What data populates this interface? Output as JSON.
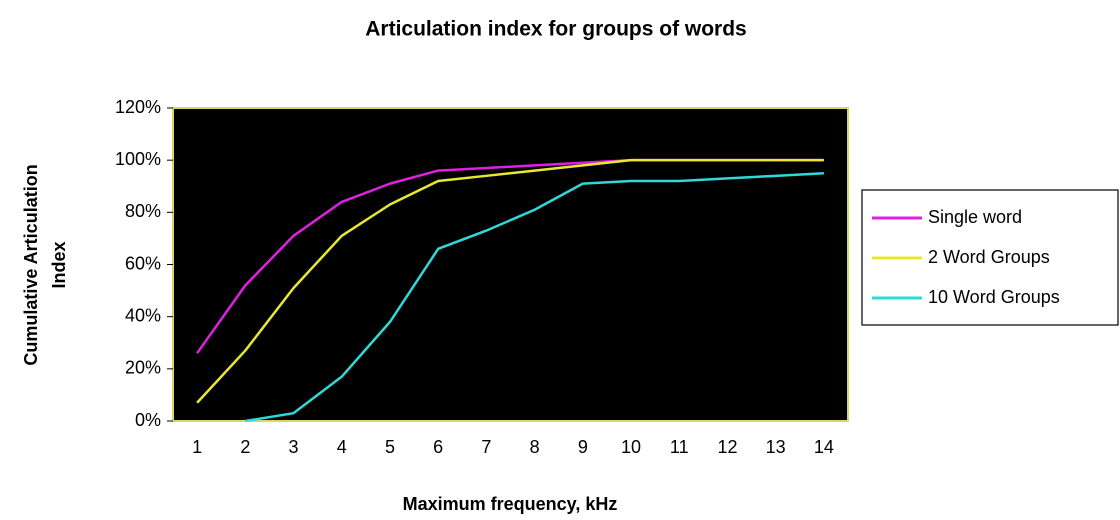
{
  "chart_data": {
    "type": "line",
    "title": "Articulation index for groups of words",
    "xlabel": "Maximum frequency, kHz",
    "ylabel": [
      "Cumulative Articulation",
      "Index"
    ],
    "categories": [
      "1",
      "2",
      "3",
      "4",
      "5",
      "6",
      "7",
      "8",
      "9",
      "10",
      "11",
      "12",
      "13",
      "14"
    ],
    "series": [
      {
        "name": "Single word",
        "color": "#e020e0",
        "values": [
          26,
          52,
          71,
          84,
          91,
          96,
          97,
          98,
          99,
          100,
          100,
          100,
          100,
          100
        ]
      },
      {
        "name": "2 Word Groups",
        "color": "#e8e830",
        "values": [
          7,
          27,
          51,
          71,
          83,
          92,
          94,
          96,
          98,
          100,
          100,
          100,
          100,
          100
        ]
      },
      {
        "name": "10 Word Groups",
        "color": "#30d8d8",
        "values": [
          null,
          0,
          3,
          17,
          38,
          66,
          73,
          81,
          91,
          92,
          92,
          93,
          94,
          95
        ]
      }
    ],
    "ylim": [
      0,
      120
    ],
    "yticks": [
      {
        "value": 0,
        "label": "0%"
      },
      {
        "value": 20,
        "label": "20%"
      },
      {
        "value": 40,
        "label": "40%"
      },
      {
        "value": 60,
        "label": "60%"
      },
      {
        "value": 80,
        "label": "80%"
      },
      {
        "value": 100,
        "label": "100%"
      },
      {
        "value": 120,
        "label": "120%"
      }
    ],
    "legend": "right",
    "plot_background": "#000000"
  }
}
